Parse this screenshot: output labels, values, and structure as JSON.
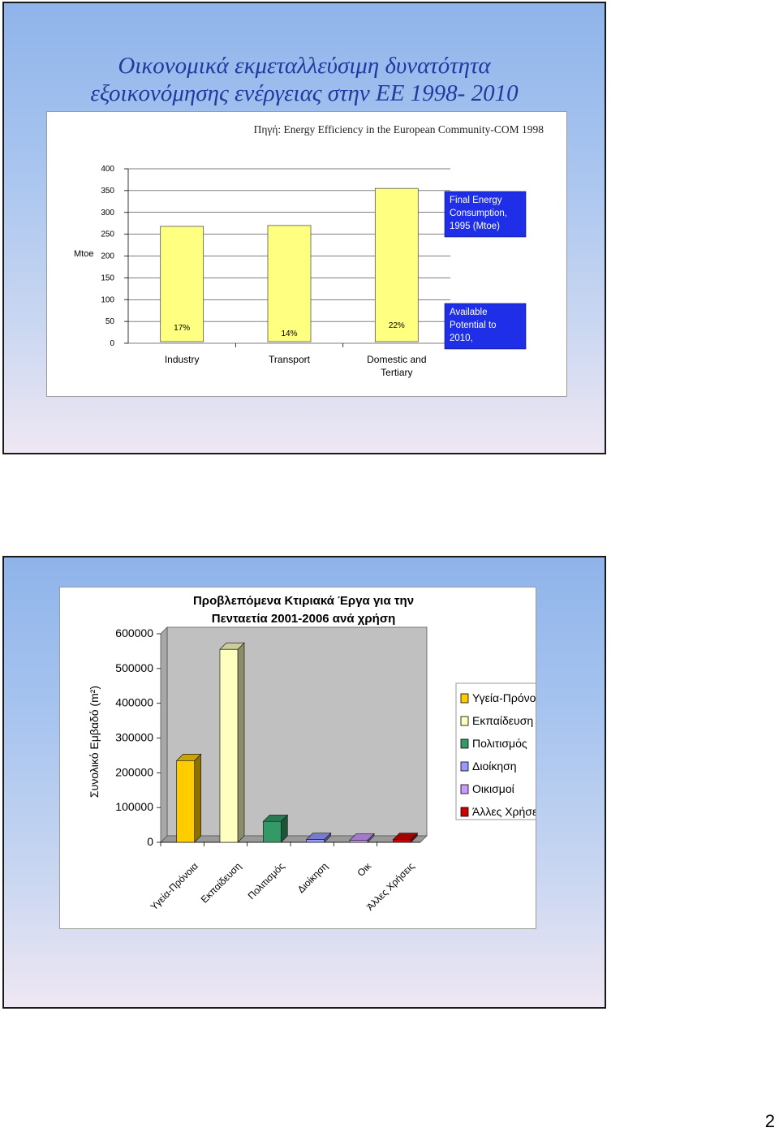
{
  "slide1": {
    "title_line1": "Οικονομικά εκμεταλλεύσιμη δυνατότητα",
    "title_line2": "εξοικονόμησης ενέργειας στην ΕΕ 1998- 2010",
    "source": "Πηγή: Energy Efficiency in the European Community-COM 1998"
  },
  "page_number": "2",
  "chart_data": [
    {
      "type": "bar",
      "title": "",
      "ylabel": "Mtoe",
      "ylim": [
        0,
        400
      ],
      "yticks": [
        "400",
        "350",
        "300",
        "250",
        "200",
        "150",
        "100",
        "50",
        "0"
      ],
      "categories": [
        "Industry",
        "Transport",
        "Domestic and Tertiary"
      ],
      "category_lines": [
        [
          "Industry"
        ],
        [
          "Transport"
        ],
        [
          "Domestic and",
          "Tertiary"
        ]
      ],
      "series": [
        {
          "name": "Final Energy Consumption, 1995 (Mtoe)",
          "name_lines": [
            "Final Energy",
            "Consumption,",
            "1995 (Mtoe)"
          ],
          "values": [
            268,
            270,
            355
          ],
          "color": "#ffff80"
        },
        {
          "name": "Available Potential to 2010,",
          "name_lines": [
            "Available",
            "Potential to",
            "2010,"
          ],
          "values": [
            0,
            0,
            0
          ],
          "color": "#1f2fe8"
        }
      ],
      "data_labels": [
        "17%",
        "14%",
        "22%"
      ],
      "legend": "right",
      "grid": true
    },
    {
      "type": "bar",
      "title": "Προβλεπόμενα Κτιριακά Έργα για την Πενταετία 2001-2006 ανά χρήση",
      "title_lines": [
        "Προβλεπόμενα Κτιριακά Έργα για την",
        "Πενταετία 2001-2006 ανά χρήση"
      ],
      "ylabel": "Συνολικό Εμβαδό (m²)",
      "ylim": [
        0,
        600000
      ],
      "yticks": [
        "600000",
        "500000",
        "400000",
        "300000",
        "200000",
        "100000",
        "0"
      ],
      "categories": [
        "Υγεία-Πρόνοια",
        "Εκπαίδευση",
        "Πολιτισμός",
        "Διοίκηση",
        "Οικ",
        "Άλλες Χρήσεις"
      ],
      "legend_labels": [
        "Υγεία-Πρόνοια",
        "Εκπαίδευση",
        "Πολιτισμός",
        "Διοίκηση",
        "Οικισμοί",
        "Άλλες Χρήσεις"
      ],
      "values": [
        235000,
        555000,
        60000,
        8000,
        6000,
        8000
      ],
      "colors": [
        "#ffcc00",
        "#ffffc0",
        "#339966",
        "#9999ff",
        "#cc99ff",
        "#cc0000"
      ],
      "legend": "right",
      "grid": false
    }
  ]
}
